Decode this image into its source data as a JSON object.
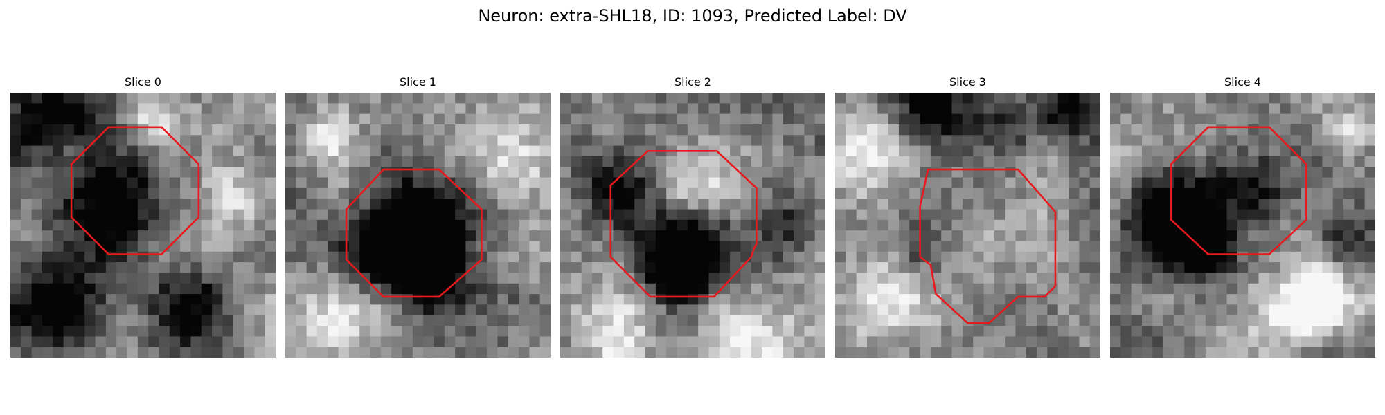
{
  "title": "Neuron: extra-SHL18, ID: 1093, Predicted Label: DV",
  "panels": [
    {
      "label": "Slice 0",
      "seed": 11,
      "dark": [
        [
          0.38,
          0.42,
          0.18,
          0.75
        ],
        [
          0.15,
          0.85,
          0.2,
          0.6
        ],
        [
          0.7,
          0.82,
          0.15,
          0.5
        ],
        [
          0.08,
          0.1,
          0.15,
          0.4
        ],
        [
          0.25,
          0.05,
          0.15,
          0.35
        ]
      ],
      "light": [
        [
          0.55,
          0.08,
          0.12,
          0.5
        ],
        [
          0.85,
          0.4,
          0.12,
          0.35
        ]
      ],
      "contour": [
        [
          0.37,
          0.13
        ],
        [
          0.57,
          0.13
        ],
        [
          0.71,
          0.27
        ],
        [
          0.71,
          0.47
        ],
        [
          0.57,
          0.61
        ],
        [
          0.37,
          0.61
        ],
        [
          0.23,
          0.47
        ],
        [
          0.23,
          0.27
        ]
      ]
    },
    {
      "label": "Slice 1",
      "seed": 23,
      "dark": [
        [
          0.5,
          0.55,
          0.22,
          0.85
        ],
        [
          0.38,
          0.62,
          0.12,
          0.5
        ],
        [
          0.55,
          0.7,
          0.12,
          0.45
        ]
      ],
      "light": [
        [
          0.85,
          0.25,
          0.15,
          0.45
        ],
        [
          0.2,
          0.85,
          0.15,
          0.4
        ],
        [
          0.15,
          0.15,
          0.12,
          0.35
        ]
      ],
      "contour": [
        [
          0.37,
          0.29
        ],
        [
          0.58,
          0.29
        ],
        [
          0.74,
          0.44
        ],
        [
          0.74,
          0.63
        ],
        [
          0.58,
          0.77
        ],
        [
          0.37,
          0.77
        ],
        [
          0.23,
          0.63
        ],
        [
          0.23,
          0.44
        ]
      ]
    },
    {
      "label": "Slice 2",
      "seed": 37,
      "dark": [
        [
          0.48,
          0.6,
          0.18,
          0.7
        ],
        [
          0.45,
          0.66,
          0.12,
          0.55
        ],
        [
          0.2,
          0.35,
          0.15,
          0.45
        ],
        [
          0.9,
          0.5,
          0.12,
          0.4
        ]
      ],
      "light": [
        [
          0.5,
          0.35,
          0.15,
          0.35
        ],
        [
          0.2,
          0.9,
          0.2,
          0.35
        ],
        [
          0.75,
          0.95,
          0.15,
          0.35
        ]
      ],
      "contour": [
        [
          0.33,
          0.22
        ],
        [
          0.59,
          0.22
        ],
        [
          0.74,
          0.36
        ],
        [
          0.74,
          0.57
        ],
        [
          0.73,
          0.59
        ],
        [
          0.72,
          0.62
        ],
        [
          0.58,
          0.77
        ],
        [
          0.34,
          0.77
        ],
        [
          0.19,
          0.62
        ],
        [
          0.19,
          0.35
        ]
      ]
    },
    {
      "label": "Slice 3",
      "seed": 53,
      "dark": [
        [
          0.35,
          0.05,
          0.15,
          0.5
        ],
        [
          0.9,
          0.05,
          0.1,
          0.6
        ],
        [
          0.65,
          0.1,
          0.15,
          0.4
        ],
        [
          0.3,
          0.6,
          0.12,
          0.3
        ]
      ],
      "light": [
        [
          0.1,
          0.2,
          0.18,
          0.55
        ],
        [
          0.15,
          0.8,
          0.18,
          0.4
        ],
        [
          0.5,
          0.55,
          0.2,
          0.2
        ]
      ],
      "contour": [
        [
          0.35,
          0.29
        ],
        [
          0.69,
          0.29
        ],
        [
          0.83,
          0.45
        ],
        [
          0.83,
          0.73
        ],
        [
          0.79,
          0.77
        ],
        [
          0.69,
          0.77
        ],
        [
          0.58,
          0.87
        ],
        [
          0.5,
          0.87
        ],
        [
          0.38,
          0.76
        ],
        [
          0.36,
          0.65
        ],
        [
          0.32,
          0.62
        ],
        [
          0.32,
          0.43
        ]
      ]
    },
    {
      "label": "Slice 4",
      "seed": 71,
      "dark": [
        [
          0.22,
          0.48,
          0.18,
          0.9
        ],
        [
          0.35,
          0.6,
          0.12,
          0.6
        ],
        [
          0.55,
          0.35,
          0.15,
          0.45
        ],
        [
          0.9,
          0.55,
          0.12,
          0.4
        ]
      ],
      "light": [
        [
          0.65,
          0.85,
          0.15,
          0.45
        ],
        [
          0.8,
          0.8,
          0.12,
          0.5
        ],
        [
          0.9,
          0.15,
          0.1,
          0.35
        ]
      ],
      "contour": [
        [
          0.37,
          0.13
        ],
        [
          0.6,
          0.13
        ],
        [
          0.74,
          0.27
        ],
        [
          0.74,
          0.48
        ],
        [
          0.6,
          0.61
        ],
        [
          0.37,
          0.61
        ],
        [
          0.23,
          0.48
        ],
        [
          0.23,
          0.27
        ]
      ]
    }
  ],
  "contour_color": "#e8191d"
}
